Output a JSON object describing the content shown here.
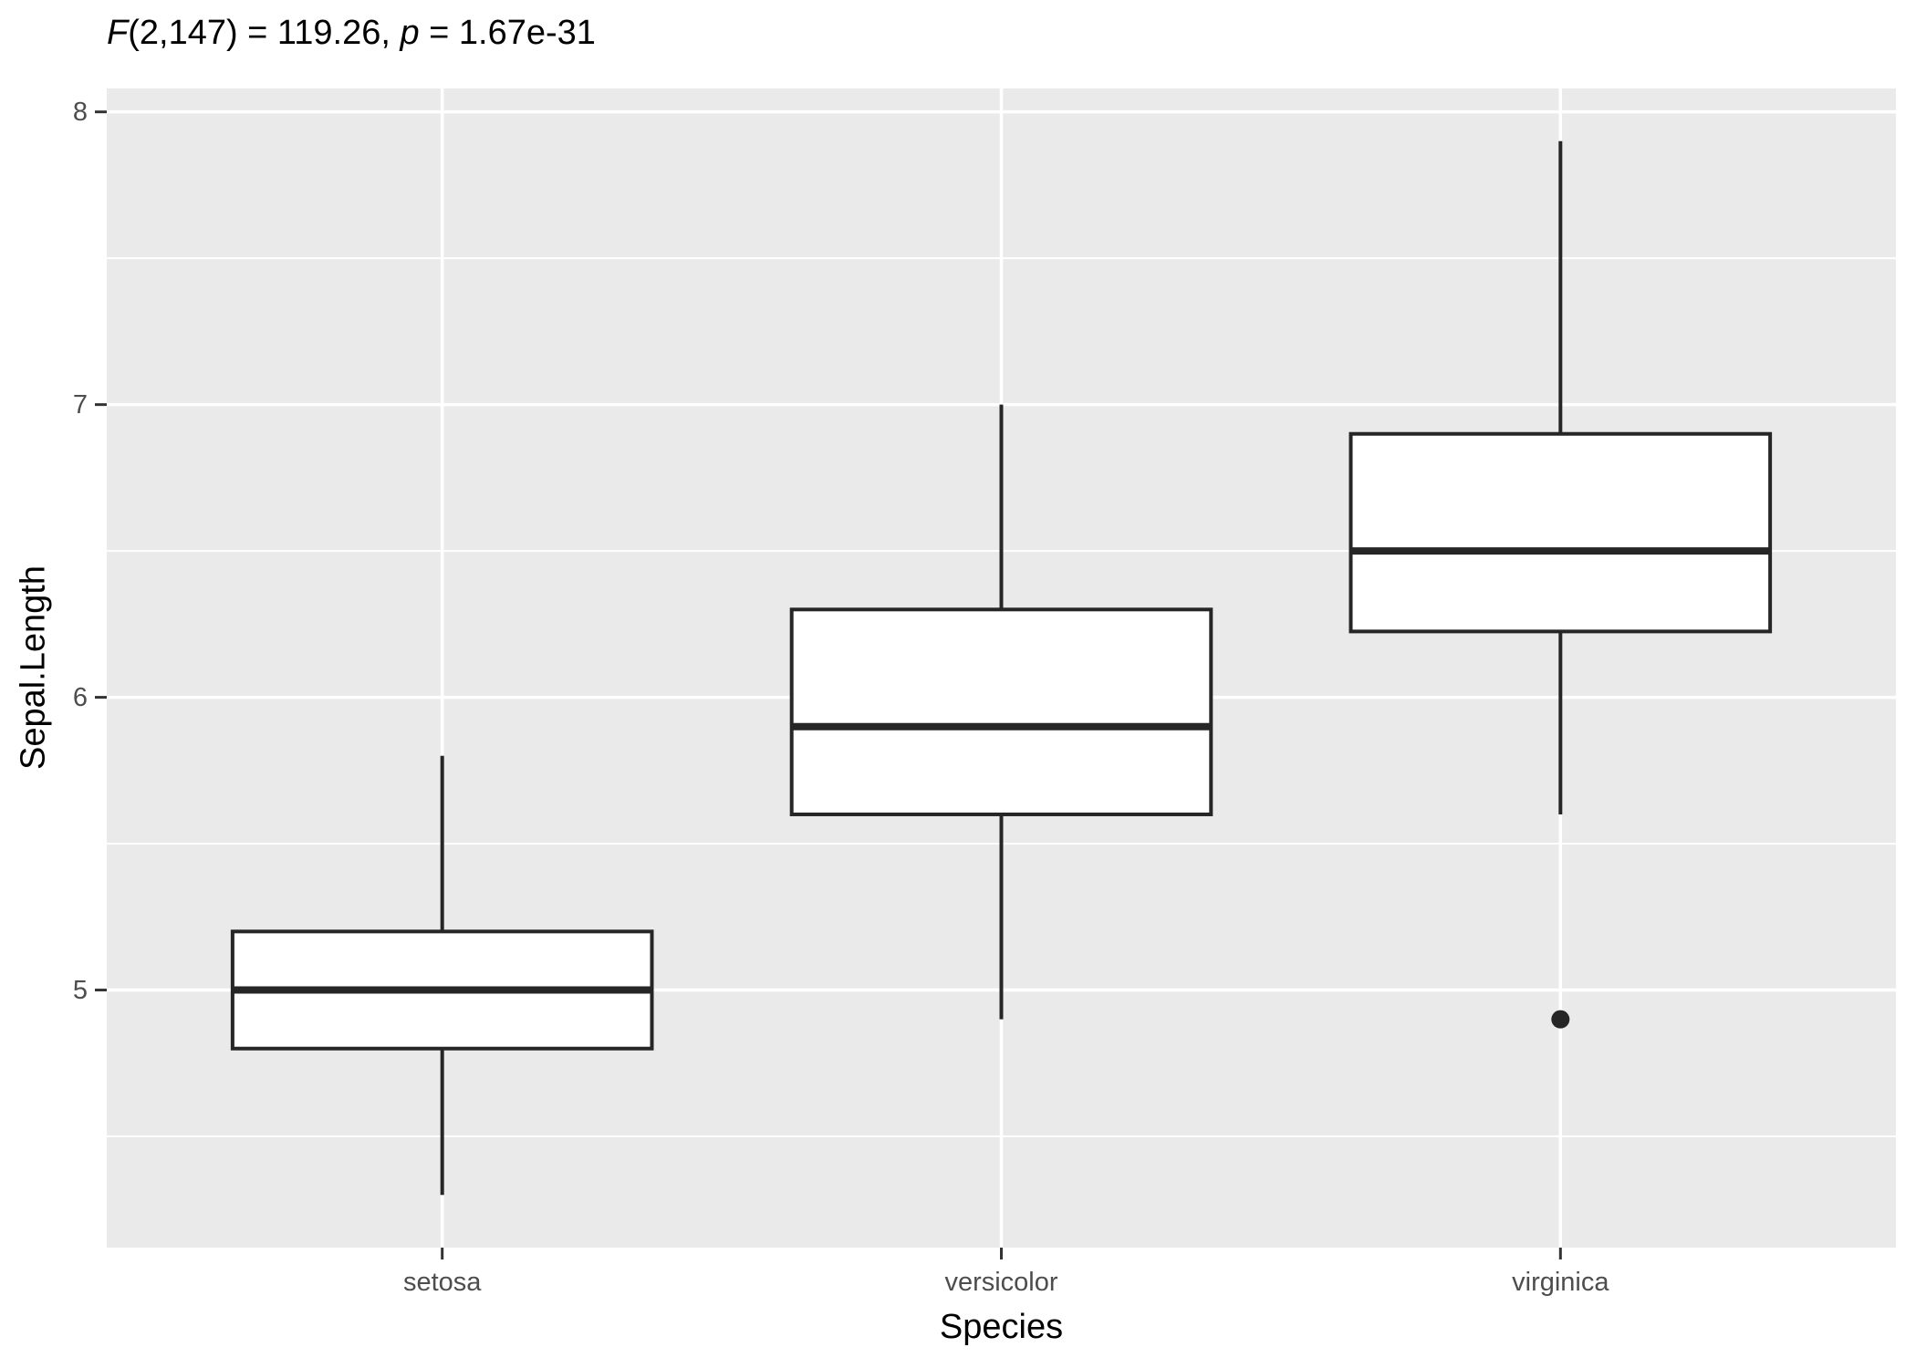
{
  "annotation": {
    "f_symbol": "F",
    "f_rest": "(2,147) = 119.26, ",
    "p_symbol": "p",
    "p_rest": " = 1.67e-31"
  },
  "chart_data": {
    "type": "boxplot",
    "subtitle": "F(2,147) = 119.26, p = 1.67e-31",
    "xlabel": "Species",
    "ylabel": "Sepal.Length",
    "categories": [
      "setosa",
      "versicolor",
      "virginica"
    ],
    "y_ticks": [
      5,
      6,
      7,
      8
    ],
    "y_minor_gridlines": [
      4.5,
      5.5,
      6.5,
      7.5
    ],
    "ylim": [
      4.12,
      8.08
    ],
    "grid": "on",
    "legend_position": "none",
    "series": [
      {
        "name": "setosa",
        "whisker_low": 4.3,
        "q1": 4.8,
        "median": 5.0,
        "q3": 5.2,
        "whisker_high": 5.8,
        "outliers": []
      },
      {
        "name": "versicolor",
        "whisker_low": 4.9,
        "q1": 5.6,
        "median": 5.9,
        "q3": 6.3,
        "whisker_high": 7.0,
        "outliers": []
      },
      {
        "name": "virginica",
        "whisker_low": 5.6,
        "q1": 6.225,
        "median": 6.5,
        "q3": 6.9,
        "whisker_high": 7.9,
        "outliers": [
          4.9
        ]
      }
    ],
    "style": {
      "panel_bg": "#EAEAEA",
      "grid_color": "#FFFFFF",
      "box_fill": "#FFFFFF",
      "line_color": "#262626",
      "tick_mark_color": "#333333",
      "axis_text_color": "#4D4D4D",
      "title_color": "#000000"
    }
  }
}
